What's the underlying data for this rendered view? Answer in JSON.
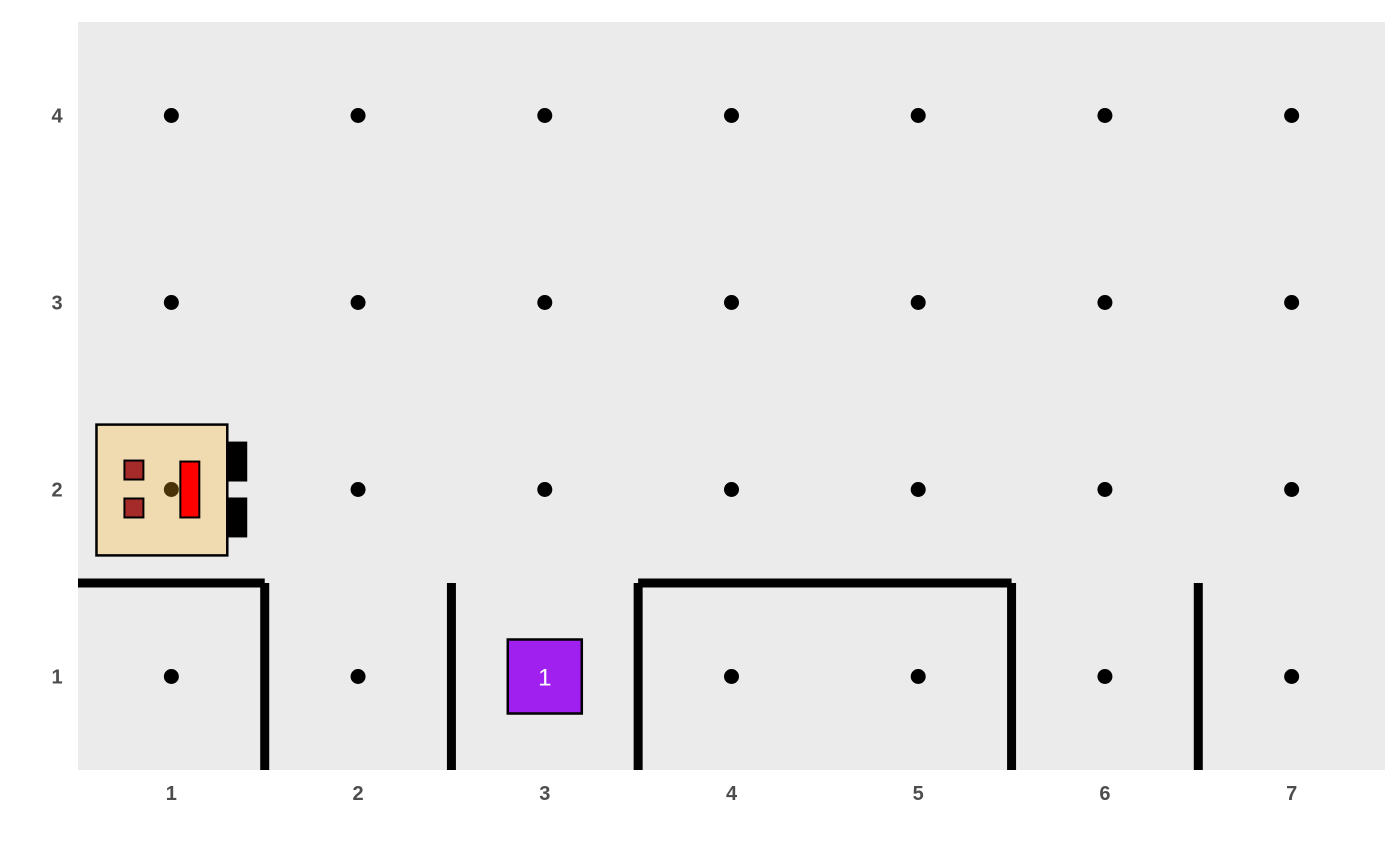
{
  "world": {
    "columns": 7,
    "rows": 4,
    "background_color": "#ebebeb",
    "dot_color": "#000000",
    "wall_color": "#000000",
    "x_tick_labels": [
      "1",
      "2",
      "3",
      "4",
      "5",
      "6",
      "7"
    ],
    "y_tick_labels": [
      "1",
      "2",
      "3",
      "4"
    ],
    "walls": [
      {
        "from": [
          0.5,
          1.5
        ],
        "to": [
          1.5,
          1.5
        ]
      },
      {
        "from": [
          1.5,
          0.5
        ],
        "to": [
          1.5,
          1.5
        ]
      },
      {
        "from": [
          2.5,
          0.5
        ],
        "to": [
          2.5,
          1.5
        ]
      },
      {
        "from": [
          3.5,
          0.5
        ],
        "to": [
          3.5,
          1.5
        ]
      },
      {
        "from": [
          3.5,
          1.5
        ],
        "to": [
          5.5,
          1.5
        ]
      },
      {
        "from": [
          5.5,
          0.5
        ],
        "to": [
          5.5,
          1.5
        ]
      },
      {
        "from": [
          6.5,
          0.5
        ],
        "to": [
          6.5,
          1.5
        ]
      }
    ],
    "beepers": [
      {
        "x": 3,
        "y": 1,
        "count": "1",
        "color": "#a020f0"
      }
    ],
    "robot": {
      "x": 1,
      "y": 2,
      "facing": "east",
      "body_color": "#f0dab0",
      "eye_color": "#a52a2a",
      "mouth_color": "#ff0000",
      "wheel_color": "#000000"
    }
  }
}
